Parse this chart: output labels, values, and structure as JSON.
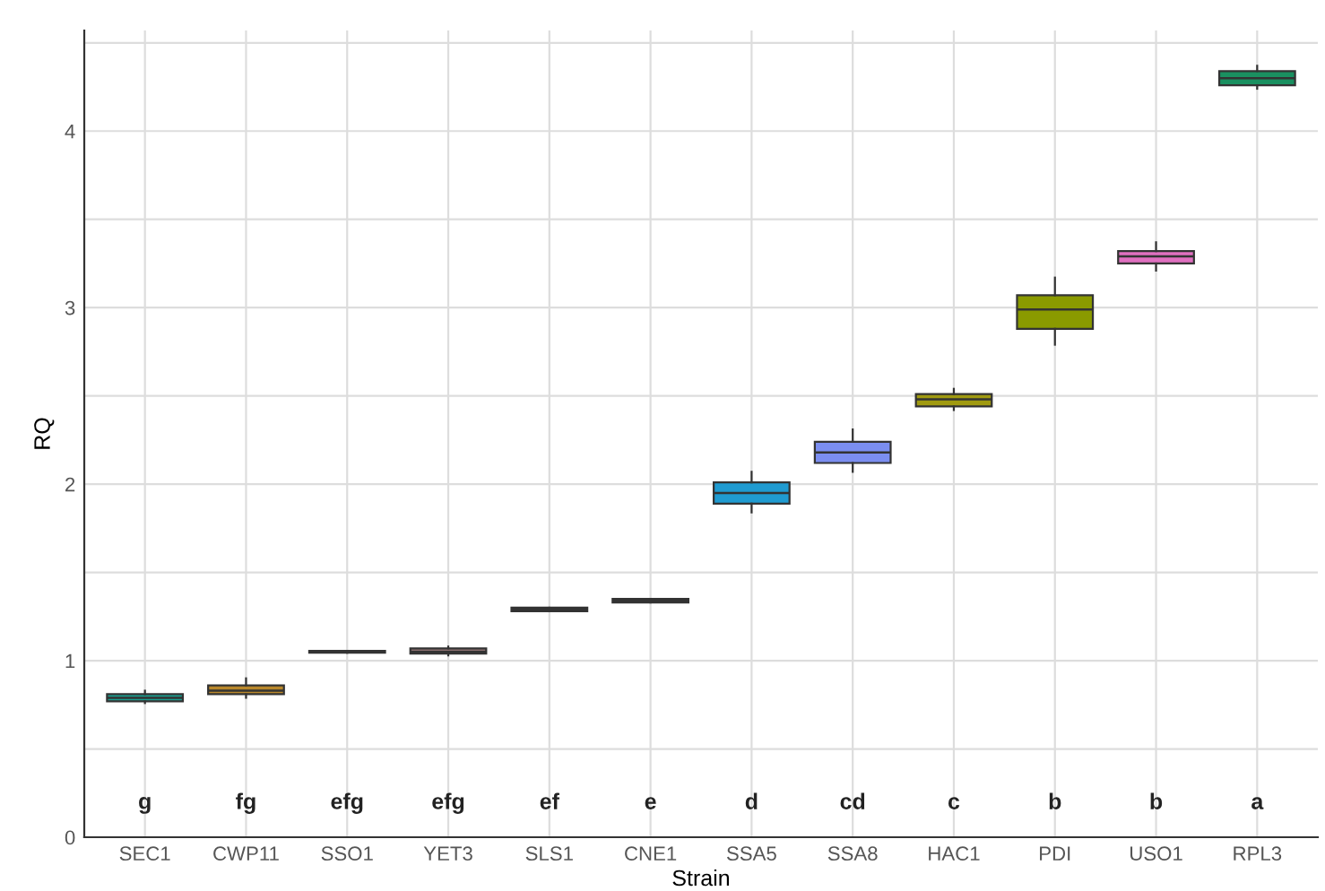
{
  "chart_data": {
    "type": "box",
    "xlabel": "Strain",
    "ylabel": "RQ",
    "categories": [
      "SEC1",
      "CWP11",
      "SSO1",
      "YET3",
      "SLS1",
      "CNE1",
      "SSA5",
      "SSA8",
      "HAC1",
      "PDI",
      "USO1",
      "RPL3"
    ],
    "boxes": [
      {
        "low": 0.76,
        "q1": 0.77,
        "median": 0.79,
        "q3": 0.81,
        "high": 0.83
      },
      {
        "low": 0.79,
        "q1": 0.81,
        "median": 0.83,
        "q3": 0.86,
        "high": 0.9
      },
      {
        "low": 1.045,
        "q1": 1.045,
        "median": 1.05,
        "q3": 1.055,
        "high": 1.055
      },
      {
        "low": 1.03,
        "q1": 1.04,
        "median": 1.05,
        "q3": 1.07,
        "high": 1.08
      },
      {
        "low": 1.28,
        "q1": 1.28,
        "median": 1.29,
        "q3": 1.3,
        "high": 1.3
      },
      {
        "low": 1.33,
        "q1": 1.33,
        "median": 1.34,
        "q3": 1.35,
        "high": 1.35
      },
      {
        "low": 1.84,
        "q1": 1.89,
        "median": 1.95,
        "q3": 2.01,
        "high": 2.07
      },
      {
        "low": 2.07,
        "q1": 2.12,
        "median": 2.18,
        "q3": 2.24,
        "high": 2.31
      },
      {
        "low": 2.42,
        "q1": 2.44,
        "median": 2.48,
        "q3": 2.51,
        "high": 2.54
      },
      {
        "low": 2.79,
        "q1": 2.88,
        "median": 2.99,
        "q3": 3.07,
        "high": 3.17
      },
      {
        "low": 3.21,
        "q1": 3.25,
        "median": 3.29,
        "q3": 3.32,
        "high": 3.37
      },
      {
        "low": 4.24,
        "q1": 4.26,
        "median": 4.3,
        "q3": 4.34,
        "high": 4.37
      }
    ],
    "colors": [
      "#1a9e8f",
      "#b8872a",
      "#7a6a6a",
      "#8a6f6f",
      "#2aa6a6",
      "#777777",
      "#1f9bd1",
      "#7b8ef0",
      "#a09a10",
      "#8a9a00",
      "#e070c0",
      "#1a9060"
    ],
    "ylim": [
      0,
      4.57
    ],
    "yticks": [
      0,
      {
        "value": 0.5,
        "label": null
      },
      1,
      {
        "value": 1.5,
        "label": null
      },
      2,
      {
        "value": 2.5,
        "label": null
      },
      3,
      {
        "value": 3.5,
        "label": null
      },
      4,
      {
        "value": 4.5,
        "label": null
      }
    ],
    "grid": true,
    "annotations": [
      "g",
      "fg",
      "efg",
      "efg",
      "ef",
      "e",
      "d",
      "cd",
      "c",
      "b",
      "b",
      "a"
    ]
  }
}
